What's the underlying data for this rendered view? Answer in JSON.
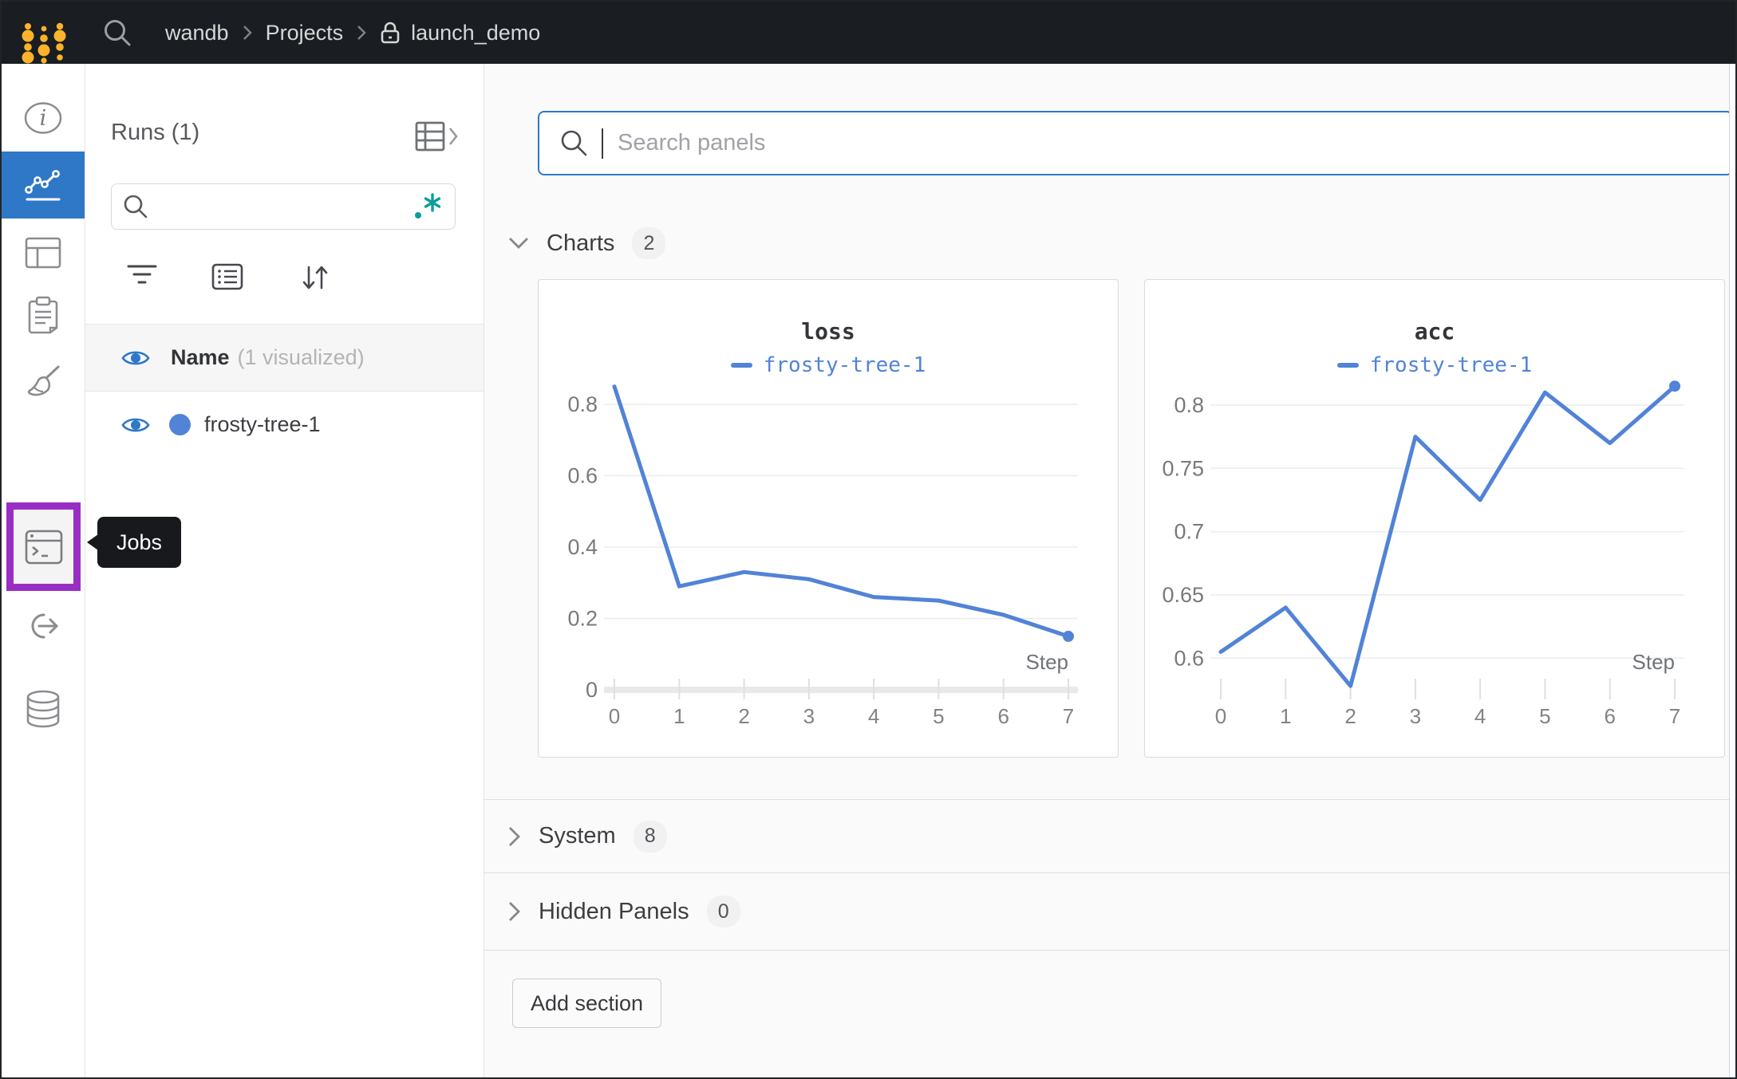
{
  "topbar": {
    "breadcrumb": [
      "wandb",
      "Projects",
      "launch_demo"
    ]
  },
  "sidebar": {
    "tooltip": "Jobs",
    "items": [
      "overview",
      "workspace-charts",
      "table",
      "logs",
      "sweeps",
      "jobs",
      "automations",
      "artifacts"
    ]
  },
  "runs_panel": {
    "title": "Runs (1)",
    "search_value": "",
    "header": {
      "name_label": "Name",
      "visualized_label": "(1 visualized)"
    },
    "rows": [
      {
        "name": "frosty-tree-1"
      }
    ]
  },
  "main": {
    "search_placeholder": "Search panels",
    "sections": [
      {
        "label": "Charts",
        "count": "2",
        "state": "expanded"
      },
      {
        "label": "System",
        "count": "8",
        "state": "collapsed"
      },
      {
        "label": "Hidden Panels",
        "count": "0",
        "state": "collapsed"
      }
    ],
    "add_section_label": "Add section"
  },
  "colors": {
    "accent_blue": "#2e78c7",
    "run_line_blue": "#5183d7",
    "brand_gold": "#fcb32b",
    "jobs_highlight_purple": "#992ec4",
    "regex_teal": "#0b9e9e",
    "topbar_bg": "#1a1d21"
  },
  "chart_data": [
    {
      "type": "line",
      "title": "loss",
      "x": [
        0,
        1,
        2,
        3,
        4,
        5,
        6,
        7
      ],
      "xlabel": "Step",
      "series": [
        {
          "name": "frosty-tree-1",
          "color": "#5183d7",
          "values": [
            0.85,
            0.29,
            0.33,
            0.31,
            0.26,
            0.25,
            0.21,
            0.15
          ]
        }
      ],
      "yticks": [
        0,
        0.2,
        0.4,
        0.6,
        0.8
      ],
      "ytick_labels": [
        "0",
        "0.2",
        "0.4",
        "0.6",
        "0.8"
      ],
      "ylim": [
        0,
        0.858
      ],
      "zero_baseline": true,
      "grid": "horizontal",
      "legend_position": "top-center"
    },
    {
      "type": "line",
      "title": "acc",
      "x": [
        0,
        1,
        2,
        3,
        4,
        5,
        6,
        7
      ],
      "xlabel": "Step",
      "series": [
        {
          "name": "frosty-tree-1",
          "color": "#5183d7",
          "values": [
            0.605,
            0.64,
            0.578,
            0.775,
            0.725,
            0.81,
            0.77,
            0.815
          ]
        }
      ],
      "yticks": [
        0.6,
        0.65,
        0.7,
        0.75,
        0.8
      ],
      "ytick_labels": [
        "0.6",
        "0.65",
        "0.7",
        "0.75",
        "0.8"
      ],
      "ylim": [
        0.575,
        0.817
      ],
      "zero_baseline": false,
      "grid": "horizontal",
      "legend_position": "top-center"
    }
  ]
}
